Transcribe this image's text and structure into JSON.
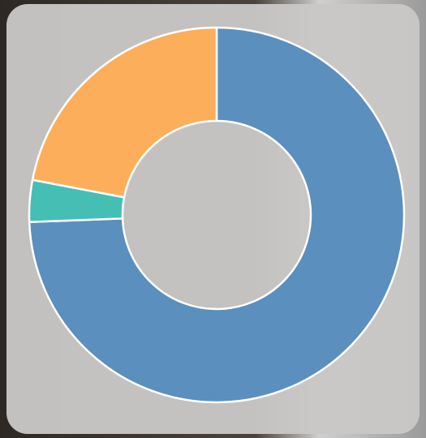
{
  "chart_data": {
    "type": "donut",
    "values": [
      74.4,
      3.6,
      22
    ],
    "colors": [
      "#5b8fbe",
      "#45bfb4",
      "#fdae5a"
    ]
  }
}
